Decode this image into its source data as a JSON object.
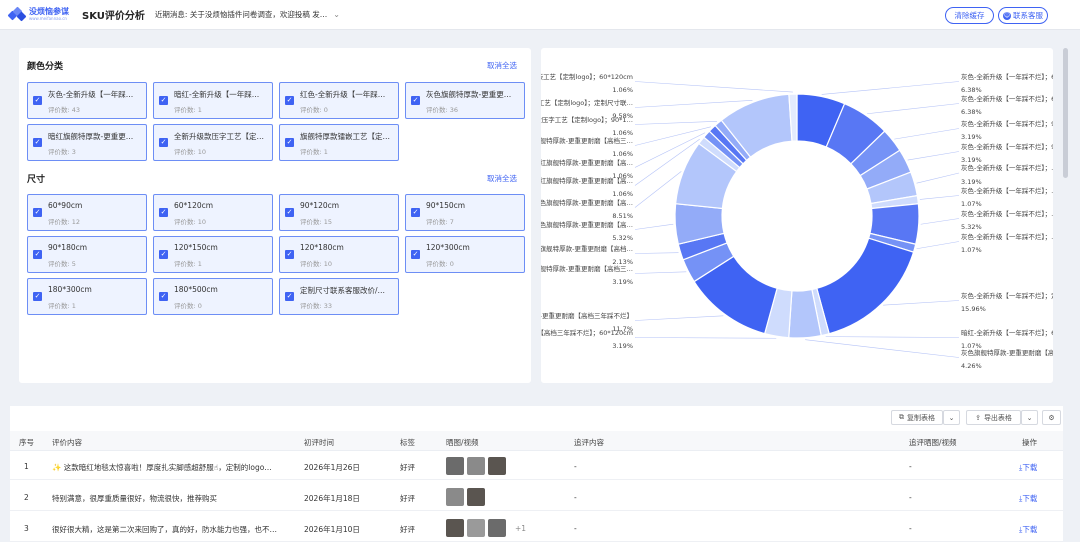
{
  "header": {
    "logo_name": "没烦恼参谋",
    "logo_url": "www.meifannao.cn",
    "title": "SKU评价分析",
    "notice": "近期消息: 关于没烦恼插件问卷调查，欢迎投稿 发…",
    "clear_cache": "清除缓存",
    "contact_service": "联系客服",
    "chevron_icon": "chevron-down-icon",
    "service_icon": "headset-icon"
  },
  "color_section": {
    "title": "颜色分类",
    "clear_all": "取消全选",
    "items": [
      {
        "label": "灰色-全新升级【一年踩…",
        "count": "评价数: 43"
      },
      {
        "label": "暗红-全新升级【一年踩…",
        "count": "评价数: 1"
      },
      {
        "label": "红色-全新升级【一年踩…",
        "count": "评价数: 0"
      },
      {
        "label": "灰色旗舰特厚款-更重更…",
        "count": "评价数: 36"
      },
      {
        "label": "暗红旗舰特厚款-更重更…",
        "count": "评价数: 3"
      },
      {
        "label": "全新升级款压字工艺【定…",
        "count": "评价数: 10"
      },
      {
        "label": "旗舰特厚款镭嵌工艺【定…",
        "count": "评价数: 1"
      }
    ]
  },
  "size_section": {
    "title": "尺寸",
    "clear_all": "取消全选",
    "items": [
      {
        "label": "60*90cm",
        "count": "评价数: 12"
      },
      {
        "label": "60*120cm",
        "count": "评价数: 10"
      },
      {
        "label": "90*120cm",
        "count": "评价数: 15"
      },
      {
        "label": "90*150cm",
        "count": "评价数: 7"
      },
      {
        "label": "90*180cm",
        "count": "评价数: 5"
      },
      {
        "label": "120*150cm",
        "count": "评价数: 1"
      },
      {
        "label": "120*180cm",
        "count": "评价数: 10"
      },
      {
        "label": "120*300cm",
        "count": "评价数: 0"
      },
      {
        "label": "180*300cm",
        "count": "评价数: 1"
      },
      {
        "label": "180*500cm",
        "count": "评价数: 0"
      },
      {
        "label": "定制尺寸联系客服改价/…",
        "count": "评价数: 33"
      }
    ]
  },
  "chart_data": {
    "type": "pie",
    "donut": true,
    "colors": [
      "#3f63f3",
      "#5877f4",
      "#7592f6",
      "#93abf8",
      "#b3c6fb",
      "#cfdcfd",
      "#e3ebfe"
    ],
    "slices": [
      {
        "label": "灰色-全新升级【一年踩不烂】；60*90cm",
        "value": 6.38,
        "value_label": "6.38%"
      },
      {
        "label": "灰色-全新升级【一年踩不烂】；60*120cm",
        "value": 6.38,
        "value_label": "6.38%"
      },
      {
        "label": "灰色-全新升级【一年踩不烂】；90*120…",
        "value": 3.19,
        "value_label": "3.19%"
      },
      {
        "label": "灰色-全新升级【一年踩不烂】；90…",
        "value": 3.19,
        "value_label": "3.19%"
      },
      {
        "label": "灰色-全新升级【一年踩不烂】；…",
        "value": 3.19,
        "value_label": "3.19%"
      },
      {
        "label": "灰色-全新升级【一年踩不烂】；…",
        "value": 1.07,
        "value_label": "1.07%"
      },
      {
        "label": "灰色-全新升级【一年踩不烂】；…",
        "value": 5.32,
        "value_label": "5.32%"
      },
      {
        "label": "灰色-全新升级【一年踩不烂】；…",
        "value": 1.07,
        "value_label": "1.07%"
      },
      {
        "label": "灰色-全新升级【一年踩不烂】；定制尺…",
        "value": 15.96,
        "value_label": "15.96%"
      },
      {
        "label": "暗红-全新升级【一年踩不烂】；60*90cm",
        "value": 1.07,
        "value_label": "1.07%"
      },
      {
        "label": "灰色旗舰特厚款-更重更耐磨【高档三年踩不烂】；60*90cm",
        "value": 4.26,
        "value_label": "4.26%"
      },
      {
        "label": "灰色旗舰特厚款-更重更耐磨【高档三年踩不烂】；60*120cm",
        "value": 3.19,
        "value_label": "3.19%"
      },
      {
        "label": "灰色旗舰特厚款-更重更耐磨【高档三年踩不烂】",
        "value": 11.7,
        "value_label": "11.7%"
      },
      {
        "label": "灰色旗舰特厚款-更重更耐磨【高档三…",
        "value": 3.19,
        "value_label": "3.19%"
      },
      {
        "label": "灰色旗舰特厚款-更重更耐磨【高档…",
        "value": 2.13,
        "value_label": "2.13%"
      },
      {
        "label": "灰色旗舰特厚款-更重更耐磨【高…",
        "value": 5.32,
        "value_label": "5.32%"
      },
      {
        "label": "灰色旗舰特厚款-更重更耐磨【高…",
        "value": 8.51,
        "value_label": "8.51%"
      },
      {
        "label": "暗红旗舰特厚款-更重更耐磨【高…",
        "value": 1.06,
        "value_label": "1.06%"
      },
      {
        "label": "暗红旗舰特厚款-更重更耐磨【高…",
        "value": 1.06,
        "value_label": "1.06%"
      },
      {
        "label": "暗红旗舰特厚款-更重更耐磨【高档三…",
        "value": 1.06,
        "value_label": "1.06%"
      },
      {
        "label": "全新升级款压字工艺【定制logo】；90*1…",
        "value": 1.06,
        "value_label": "1.06%"
      },
      {
        "label": "全新升级款压字工艺【定制logo】；定制尺寸联…",
        "value": 9.58,
        "value_label": "9.58%"
      },
      {
        "label": "旗舰特厚款镭嵌工艺【定制logo】；60*120cm",
        "value": 1.06,
        "value_label": "1.06%"
      }
    ]
  },
  "table": {
    "copy_label": "复制表格",
    "export_label": "导出表格",
    "settings_icon": "gear-icon",
    "columns": [
      "序号",
      "评价内容",
      "初评时间",
      "标签",
      "晒图/视频",
      "追评内容",
      "追评晒图/视频",
      "操作"
    ],
    "rows": [
      {
        "no": "1",
        "content": "✨ 这款暗红地毯太惊喜啦！厚度扎实脚感超舒服☝，定制的logo…",
        "date": "2026年1月26日",
        "tag": "好评",
        "extra": "",
        "follow": "-",
        "follow_media": "-",
        "action": "⤓下载"
      },
      {
        "no": "2",
        "content": "特别满意，很厚重质量很好，物流很快，推荐购买",
        "date": "2026年1月18日",
        "tag": "好评",
        "extra": "",
        "follow": "-",
        "follow_media": "-",
        "action": "⤓下载"
      },
      {
        "no": "3",
        "content": "很好很大精，这是第二次来回购了，真的好，防水能力也强，也不…",
        "date": "2026年1月10日",
        "tag": "好评",
        "extra": "+1",
        "follow": "-",
        "follow_media": "-",
        "action": "⤓下载"
      }
    ]
  }
}
